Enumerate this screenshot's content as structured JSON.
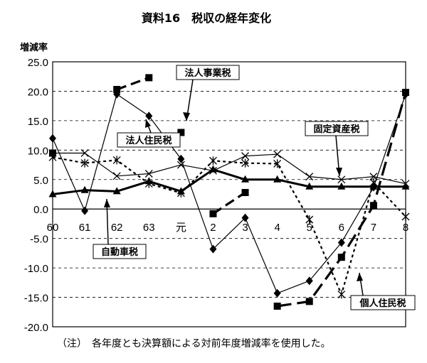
{
  "chart_data": {
    "type": "line",
    "title": "資料16　税収の経年変化",
    "ylabel": "増減率",
    "xlabel": "",
    "ylim": [
      -20,
      25
    ],
    "yticks": [
      "25.0",
      "20.0",
      "15.0",
      "10.0",
      "5.0",
      "0.0",
      "-5.0",
      "-10.0",
      "-15.0",
      "-20.0"
    ],
    "categories": [
      "60",
      "61",
      "62",
      "63",
      "元",
      "2",
      "3",
      "4",
      "5",
      "6",
      "7",
      "8"
    ],
    "grid": "horizontal dashed",
    "series": [
      {
        "name": "法人事業税",
        "style": "dashed-bold",
        "marker": "square",
        "values": [
          9.5,
          null,
          20.3,
          22.3,
          null,
          -0.8,
          2.8,
          null,
          null,
          null,
          null,
          null
        ]
      },
      {
        "name": "法人住民税",
        "style": "solid-thin",
        "marker": "diamond",
        "values": [
          12.0,
          -0.3,
          19.5,
          15.8,
          8.5,
          -6.8,
          -1.5,
          -14.3,
          -12.2,
          -5.7,
          3.7,
          19.5
        ]
      },
      {
        "name": "固定資産税",
        "style": "solid-thin",
        "marker": "x",
        "values": [
          9.5,
          9.5,
          5.6,
          6.0,
          7.5,
          6.5,
          9.0,
          9.3,
          5.5,
          5.0,
          5.5,
          4.3
        ]
      },
      {
        "name": "自動車税",
        "style": "solid-bold",
        "marker": "triangle",
        "values": [
          2.5,
          3.2,
          3.0,
          4.7,
          3.0,
          6.7,
          5.0,
          5.0,
          3.8,
          3.8,
          3.8,
          3.8
        ]
      },
      {
        "name": "個人住民税",
        "style": "dotted",
        "marker": "asterisk",
        "values": [
          8.8,
          7.8,
          8.3,
          4.3,
          2.7,
          8.2,
          7.8,
          7.7,
          -1.8,
          -14.5,
          4.5,
          -1.3
        ]
      },
      {
        "name": "",
        "style": "long-dash",
        "marker": "square",
        "values": [
          null,
          null,
          null,
          null,
          13.0,
          null,
          null,
          -16.5,
          -15.7,
          -8.2,
          0.6,
          19.8
        ]
      }
    ],
    "annotations": [
      "法人事業税",
      "法人住民税",
      "固定資産税",
      "自動車税",
      "個人住民税"
    ],
    "note": "（注）　各年度とも決算額による対前年度増減率を使用した。"
  }
}
